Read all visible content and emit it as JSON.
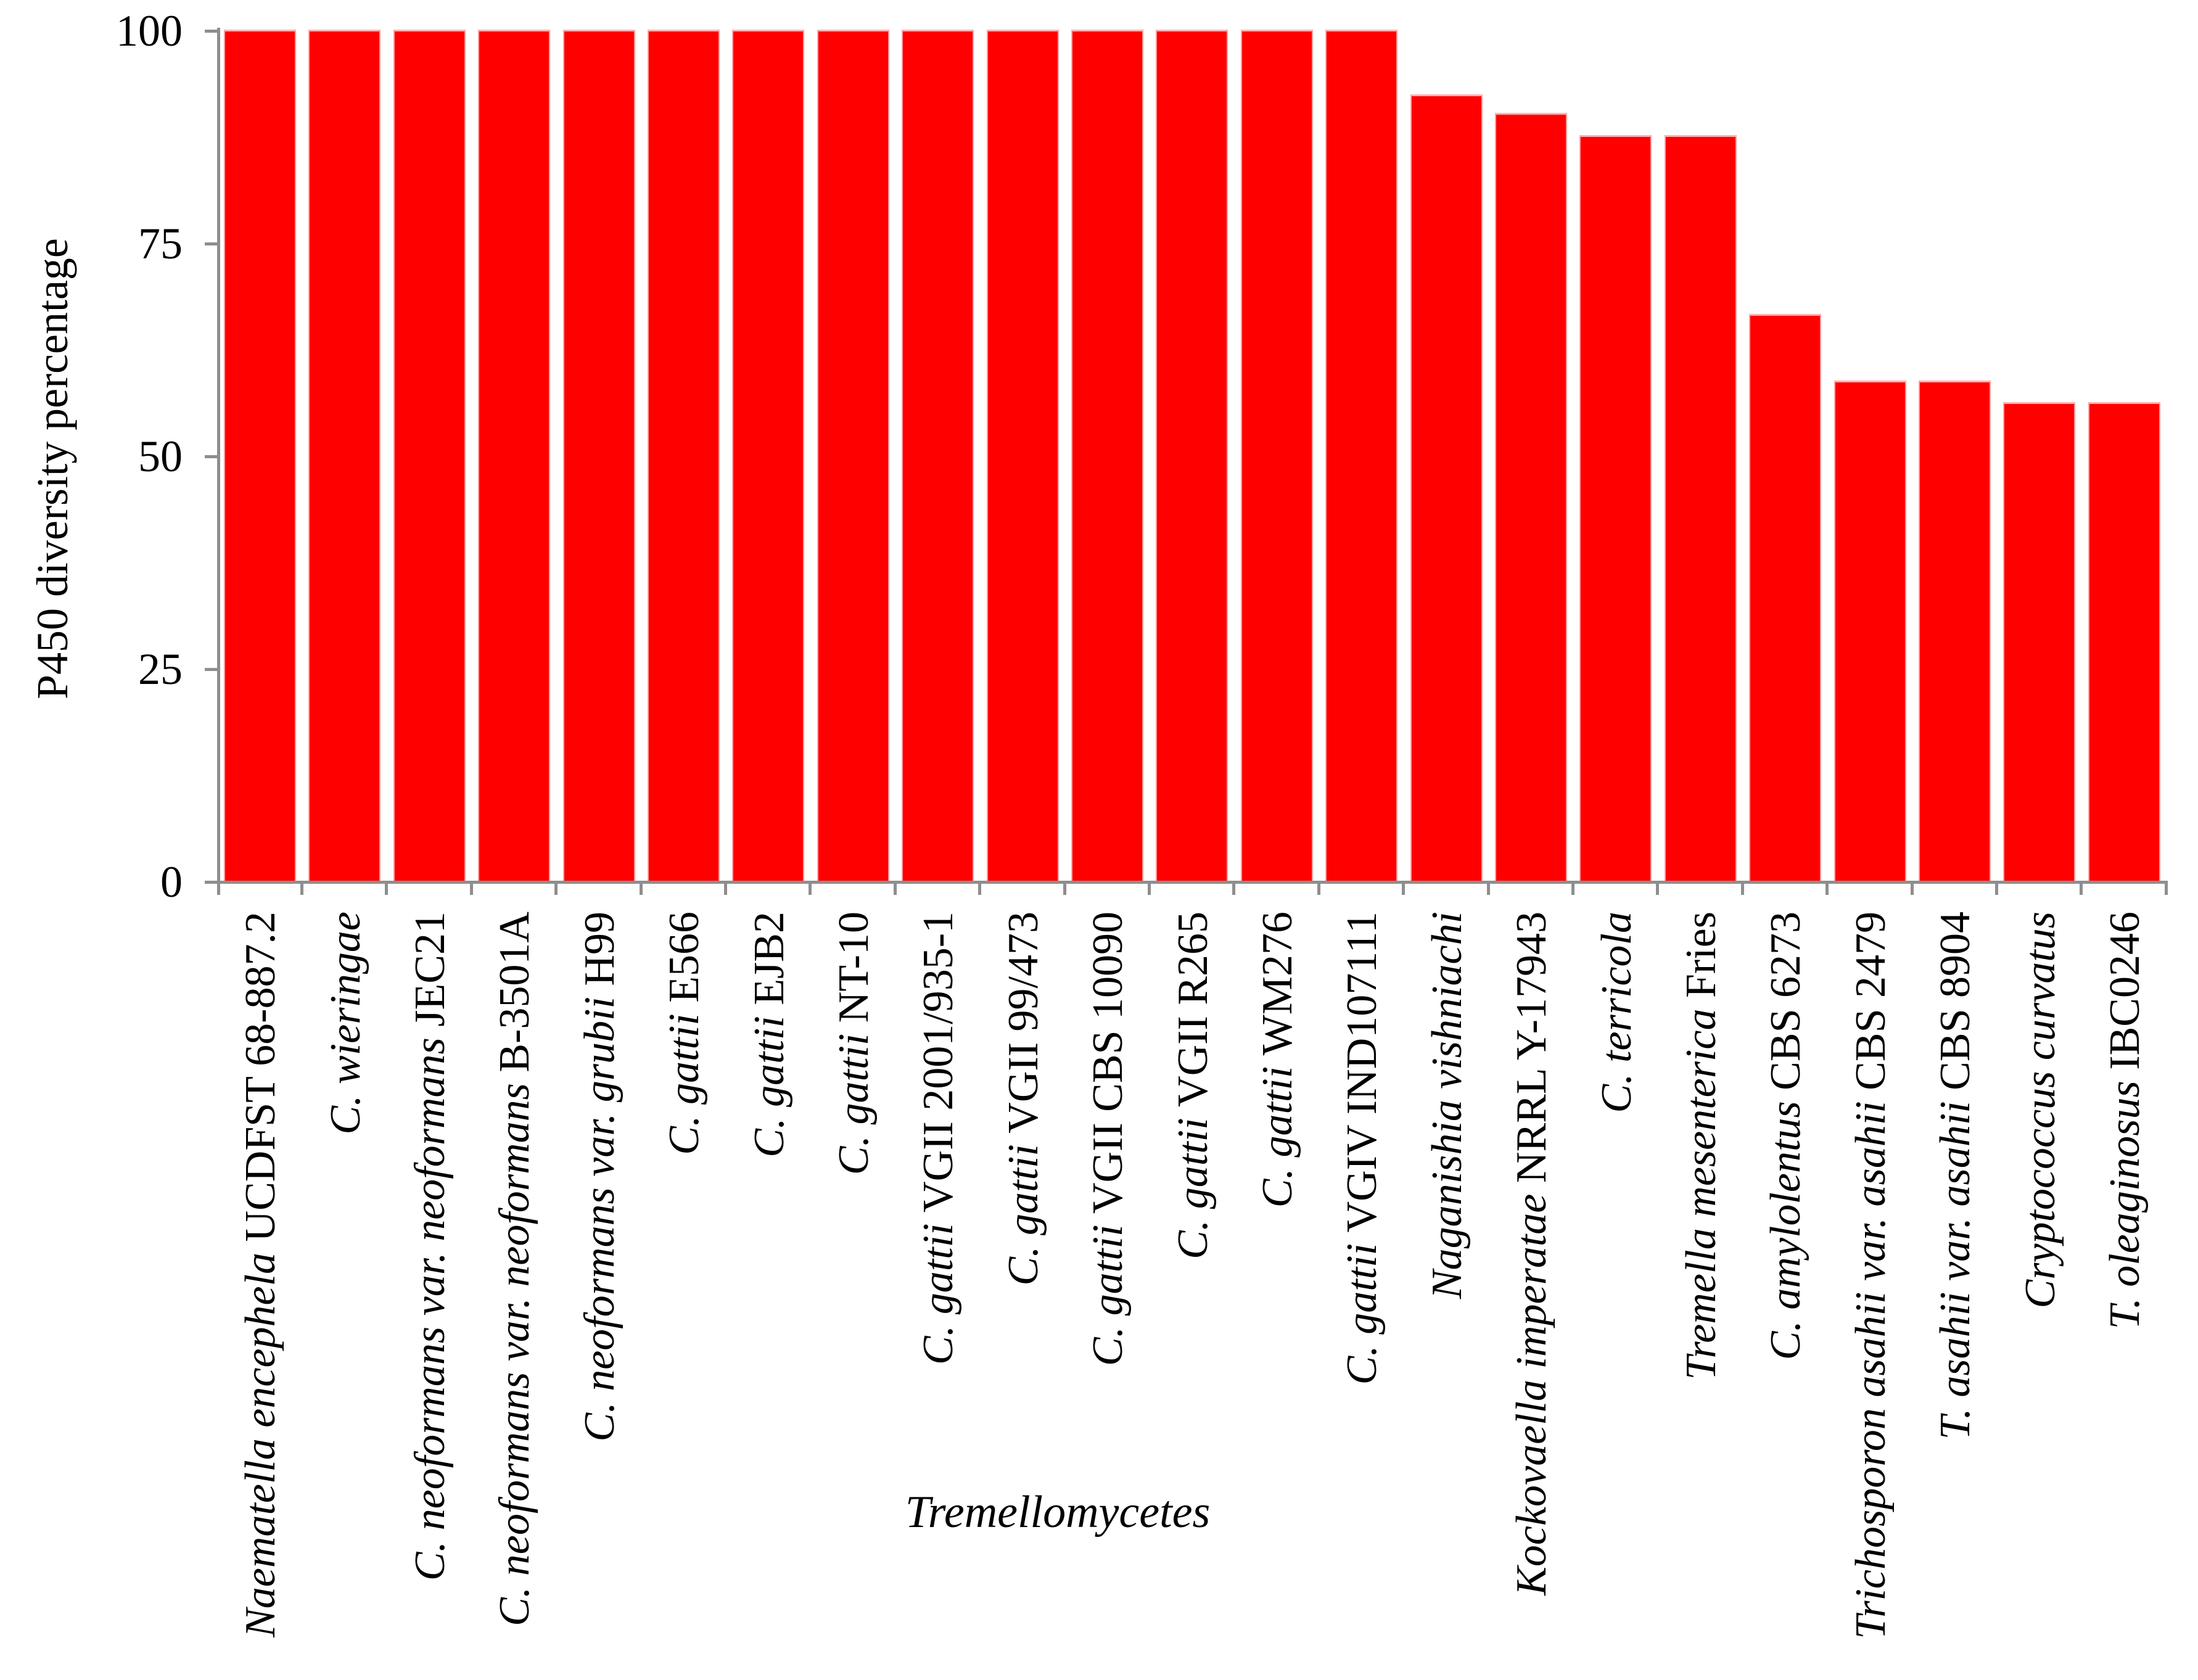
{
  "chart_data": {
    "type": "bar",
    "title": "",
    "xlabel": "Tremellomycetes",
    "ylabel": "P450 diversity percentage",
    "ylim": [
      0,
      100
    ],
    "yticks": [
      0,
      25,
      50,
      75,
      100
    ],
    "grid": false,
    "legend": false,
    "bar_color": "#fe0000",
    "bar_edge_color": "#ffb0b0",
    "axis_color": "#8e8e8e",
    "text_color": "#000000",
    "categories": [
      {
        "label": "Naematella encephela UCDFST 68-887.2",
        "segments": [
          {
            "text": "Naematella encephela ",
            "italic": true
          },
          {
            "text": "UCDFST 68-887.2",
            "italic": false
          }
        ]
      },
      {
        "label": "C. wieringae",
        "segments": [
          {
            "text": "C. wieringae",
            "italic": true
          }
        ]
      },
      {
        "label": "C. neoformans var. neoformans JEC21",
        "segments": [
          {
            "text": "C. neoformans var. neoformans ",
            "italic": true
          },
          {
            "text": "JEC21",
            "italic": false
          }
        ]
      },
      {
        "label": "C. neoformans var. neoformans B-3501A",
        "segments": [
          {
            "text": "C. neoformans var. neoformans ",
            "italic": true
          },
          {
            "text": "B-3501A",
            "italic": false
          }
        ]
      },
      {
        "label": "C. neoformans var. grubii H99",
        "segments": [
          {
            "text": "C. neoformans var. grubii ",
            "italic": true
          },
          {
            "text": "H99",
            "italic": false
          }
        ]
      },
      {
        "label": "C. gattii E566",
        "segments": [
          {
            "text": "C. gattii ",
            "italic": true
          },
          {
            "text": "E566",
            "italic": false
          }
        ]
      },
      {
        "label": "C. gattii EJB2",
        "segments": [
          {
            "text": "C. gattii ",
            "italic": true
          },
          {
            "text": "EJB2",
            "italic": false
          }
        ]
      },
      {
        "label": "C. gattii NT-10",
        "segments": [
          {
            "text": "C. gattii ",
            "italic": true
          },
          {
            "text": "NT-10",
            "italic": false
          }
        ]
      },
      {
        "label": "C. gattii VGII 2001/935-1",
        "segments": [
          {
            "text": "C. gattii ",
            "italic": true
          },
          {
            "text": "VGII 2001/935-1",
            "italic": false
          }
        ]
      },
      {
        "label": "C. gattii VGII 99/473",
        "segments": [
          {
            "text": "C. gattii ",
            "italic": true
          },
          {
            "text": "VGII 99/473",
            "italic": false
          }
        ]
      },
      {
        "label": "C. gattii VGII CBS 10090",
        "segments": [
          {
            "text": "C. gattii ",
            "italic": true
          },
          {
            "text": "VGII CBS 10090",
            "italic": false
          }
        ]
      },
      {
        "label": "C. gattii VGII R265",
        "segments": [
          {
            "text": "C. gattii ",
            "italic": true
          },
          {
            "text": "VGII R265",
            "italic": false
          }
        ]
      },
      {
        "label": "C. gattii WM276",
        "segments": [
          {
            "text": "C. gattii ",
            "italic": true
          },
          {
            "text": "WM276",
            "italic": false
          }
        ]
      },
      {
        "label": "C. gattii VGIV IND107111",
        "segments": [
          {
            "text": "C. gattii ",
            "italic": true
          },
          {
            "text": "VGIV IND107111",
            "italic": false
          }
        ]
      },
      {
        "label": "Naganishia vishniachi",
        "segments": [
          {
            "text": "Naganishia vishniachi",
            "italic": true
          }
        ]
      },
      {
        "label": "Kockovaella imperatae NRRL Y-17943",
        "segments": [
          {
            "text": "Kockovaella imperatae ",
            "italic": true
          },
          {
            "text": "NRRL Y-17943",
            "italic": false
          }
        ]
      },
      {
        "label": "C. terricola",
        "segments": [
          {
            "text": "C. terricola",
            "italic": true
          }
        ]
      },
      {
        "label": "Tremella mesenterica Fries",
        "segments": [
          {
            "text": "Tremella mesenterica ",
            "italic": true
          },
          {
            "text": "Fries",
            "italic": false
          }
        ]
      },
      {
        "label": "C. amylolentus CBS 6273",
        "segments": [
          {
            "text": "C. amylolentus ",
            "italic": true
          },
          {
            "text": "CBS 6273",
            "italic": false
          }
        ]
      },
      {
        "label": "Trichosporon asahii var. asahii CBS 2479",
        "segments": [
          {
            "text": "Trichosporon asahii var. asahii ",
            "italic": true
          },
          {
            "text": "CBS 2479",
            "italic": false
          }
        ]
      },
      {
        "label": "T. asahii var. asahii CBS 8904",
        "segments": [
          {
            "text": "T. asahii var. asahii ",
            "italic": true
          },
          {
            "text": "CBS 8904",
            "italic": false
          }
        ]
      },
      {
        "label": "Cryptococcus curvatus",
        "segments": [
          {
            "text": "Cryptococcus curvatus",
            "italic": true
          }
        ]
      },
      {
        "label": "T. oleaginosus IBC0246",
        "segments": [
          {
            "text": "T. oleaginosus ",
            "italic": true
          },
          {
            "text": "IBC0246",
            "italic": false
          }
        ]
      }
    ],
    "values": [
      100,
      100,
      100,
      100,
      100,
      100,
      100,
      100,
      100,
      100,
      100,
      100,
      100,
      100,
      92.4,
      90.2,
      87.6,
      87.6,
      66.6,
      58.8,
      58.8,
      56.2,
      56.2
    ]
  }
}
